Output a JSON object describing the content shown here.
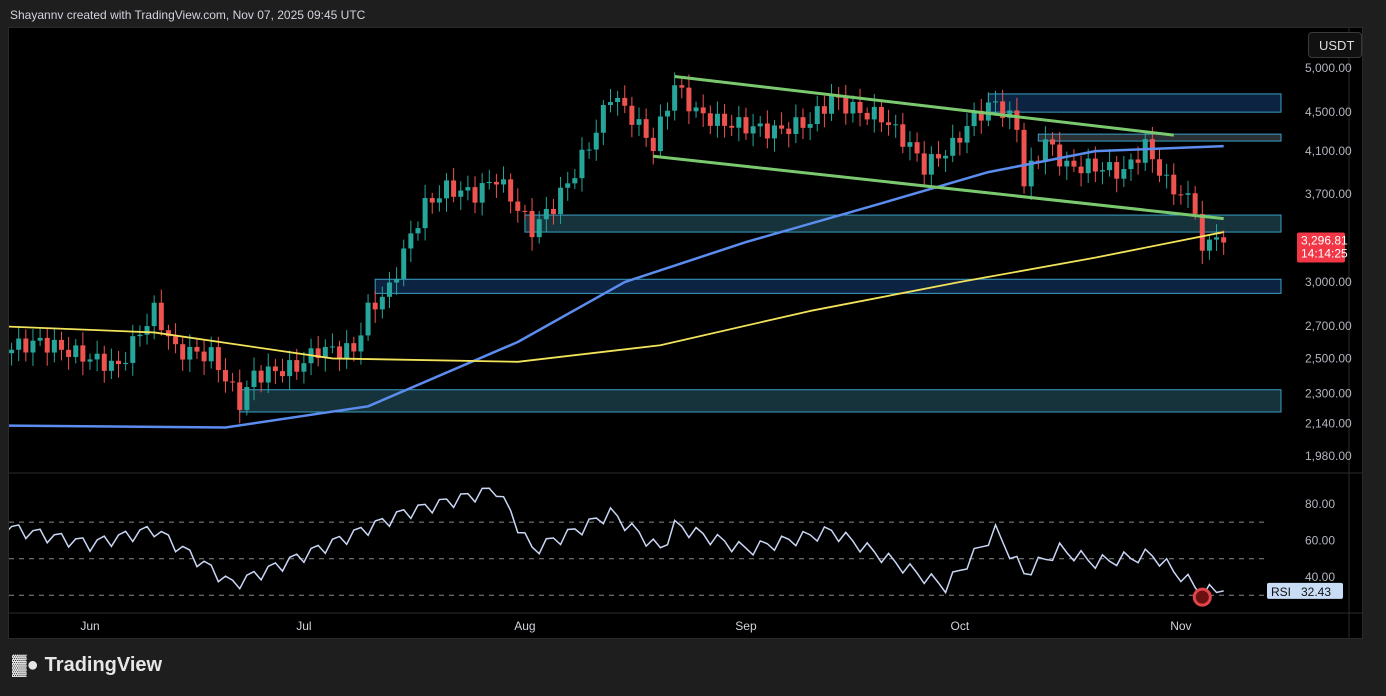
{
  "header": {
    "credit": "Shayannv created with TradingView.com, Nov 07, 2025 09:45 UTC"
  },
  "currency": "USDT",
  "logo": "TradingView",
  "colors": {
    "up": "#26a69a",
    "down": "#ef5350",
    "ma_fast": "#5b8def",
    "ma_slow": "#f2e35a",
    "channel": "#7bc96f",
    "rsi": "#c9d6f5"
  },
  "chart_data": [
    {
      "type": "candlestick",
      "scale": "log",
      "ylim": [
        1900,
        5150
      ],
      "y_ticks": [
        5000,
        4500,
        4100,
        3700,
        3000,
        2700,
        2500,
        2300,
        2140,
        1980
      ],
      "y_tick_labels": [
        "5,000.00",
        "4,500.00",
        "4,100.00",
        "3,700.00",
        "3,000.00",
        "2,700.00",
        "2,500.00",
        "2,300.00",
        "2,140.00",
        "1,980.00"
      ],
      "x_ticks": [
        {
          "date": "2025-06-01",
          "label": "Jun"
        },
        {
          "date": "2025-07-01",
          "label": "Jul"
        },
        {
          "date": "2025-08-01",
          "label": "Aug"
        },
        {
          "date": "2025-09-01",
          "label": "Sep"
        },
        {
          "date": "2025-10-01",
          "label": "Oct"
        },
        {
          "date": "2025-11-01",
          "label": "Nov"
        }
      ],
      "closes": [
        [
          "2025-05-19",
          2550
        ],
        [
          "2025-05-25",
          2600
        ],
        [
          "2025-06-01",
          2500
        ],
        [
          "2025-06-05",
          2450
        ],
        [
          "2025-06-10",
          2800
        ],
        [
          "2025-06-13",
          2550
        ],
        [
          "2025-06-18",
          2520
        ],
        [
          "2025-06-22",
          2250
        ],
        [
          "2025-06-24",
          2400
        ],
        [
          "2025-06-30",
          2450
        ],
        [
          "2025-07-03",
          2550
        ],
        [
          "2025-07-08",
          2550
        ],
        [
          "2025-07-10",
          2800
        ],
        [
          "2025-07-13",
          2950
        ],
        [
          "2025-07-16",
          3350
        ],
        [
          "2025-07-18",
          3600
        ],
        [
          "2025-07-21",
          3750
        ],
        [
          "2025-07-25",
          3700
        ],
        [
          "2025-07-28",
          3850
        ],
        [
          "2025-08-02",
          3400
        ],
        [
          "2025-08-05",
          3600
        ],
        [
          "2025-08-08",
          3900
        ],
        [
          "2025-08-11",
          4300
        ],
        [
          "2025-08-13",
          4700
        ],
        [
          "2025-08-16",
          4450
        ],
        [
          "2025-08-19",
          4150
        ],
        [
          "2025-08-22",
          4800
        ],
        [
          "2025-08-25",
          4500
        ],
        [
          "2025-08-28",
          4400
        ],
        [
          "2025-09-01",
          4350
        ],
        [
          "2025-09-05",
          4300
        ],
        [
          "2025-09-10",
          4400
        ],
        [
          "2025-09-13",
          4650
        ],
        [
          "2025-09-17",
          4500
        ],
        [
          "2025-09-20",
          4450
        ],
        [
          "2025-09-24",
          4150
        ],
        [
          "2025-09-26",
          3950
        ],
        [
          "2025-09-30",
          4150
        ],
        [
          "2025-10-03",
          4450
        ],
        [
          "2025-10-06",
          4600
        ],
        [
          "2025-10-09",
          4350
        ],
        [
          "2025-10-10",
          3800
        ],
        [
          "2025-10-13",
          4200
        ],
        [
          "2025-10-16",
          3950
        ],
        [
          "2025-10-20",
          3950
        ],
        [
          "2025-10-24",
          3900
        ],
        [
          "2025-10-27",
          4150
        ],
        [
          "2025-10-30",
          3800
        ],
        [
          "2025-11-03",
          3600
        ],
        [
          "2025-11-04",
          3200
        ],
        [
          "2025-11-06",
          3400
        ],
        [
          "2025-11-07",
          3296.81
        ]
      ],
      "ma_fast": [
        [
          "2025-05-19",
          2130
        ],
        [
          "2025-06-20",
          2120
        ],
        [
          "2025-07-10",
          2230
        ],
        [
          "2025-07-31",
          2600
        ],
        [
          "2025-08-15",
          3000
        ],
        [
          "2025-09-01",
          3300
        ],
        [
          "2025-09-20",
          3620
        ],
        [
          "2025-10-05",
          3900
        ],
        [
          "2025-10-20",
          4100
        ],
        [
          "2025-11-07",
          4150
        ]
      ],
      "ma_slow": [
        [
          "2025-05-19",
          2700
        ],
        [
          "2025-06-10",
          2660
        ],
        [
          "2025-07-05",
          2500
        ],
        [
          "2025-07-31",
          2480
        ],
        [
          "2025-08-20",
          2580
        ],
        [
          "2025-09-10",
          2800
        ],
        [
          "2025-10-01",
          3000
        ],
        [
          "2025-10-20",
          3180
        ],
        [
          "2025-11-07",
          3380
        ]
      ],
      "zones": [
        {
          "from": "2025-10-05",
          "low": 4500,
          "high": 4700,
          "color": "#0d2342"
        },
        {
          "from": "2025-10-12",
          "low": 4200,
          "high": 4270,
          "color": "#2a3034"
        },
        {
          "from": "2025-08-01",
          "low": 3380,
          "high": 3520,
          "color": "#16323a"
        },
        {
          "from": "2025-07-11",
          "low": 2920,
          "high": 3020,
          "color": "#0d2342"
        },
        {
          "from": "2025-06-22",
          "low": 2200,
          "high": 2320,
          "color": "#16323a"
        }
      ],
      "channel": [
        [
          [
            "2025-08-22",
            4900
          ],
          [
            "2025-10-31",
            4260
          ]
        ],
        [
          [
            "2025-08-19",
            4050
          ],
          [
            "2025-11-07",
            3490
          ]
        ]
      ],
      "last_price": "3,296.81",
      "countdown": "14:14:25"
    },
    {
      "type": "line",
      "name": "RSI",
      "ylim": [
        25,
        92
      ],
      "y_ticks": [
        80,
        60,
        40
      ],
      "y_tick_labels": [
        "80.00",
        "60.00",
        "40.00"
      ],
      "bands": [
        70,
        50,
        30
      ],
      "values": [
        [
          "2025-05-19",
          68
        ],
        [
          "2025-06-01",
          58
        ],
        [
          "2025-06-10",
          66
        ],
        [
          "2025-06-21",
          36
        ],
        [
          "2025-07-01",
          52
        ],
        [
          "2025-07-15",
          75
        ],
        [
          "2025-07-28",
          88
        ],
        [
          "2025-08-02",
          55
        ],
        [
          "2025-08-08",
          65
        ],
        [
          "2025-08-13",
          75
        ],
        [
          "2025-08-20",
          55
        ],
        [
          "2025-08-22",
          68
        ],
        [
          "2025-09-01",
          55
        ],
        [
          "2025-09-13",
          65
        ],
        [
          "2025-09-26",
          40
        ],
        [
          "2025-09-29",
          35
        ],
        [
          "2025-10-06",
          65
        ],
        [
          "2025-10-10",
          42
        ],
        [
          "2025-10-15",
          55
        ],
        [
          "2025-10-20",
          48
        ],
        [
          "2025-10-28",
          52
        ],
        [
          "2025-11-04",
          32
        ],
        [
          "2025-11-07",
          32.43
        ]
      ],
      "label": "RSI",
      "value": "32.43"
    }
  ]
}
